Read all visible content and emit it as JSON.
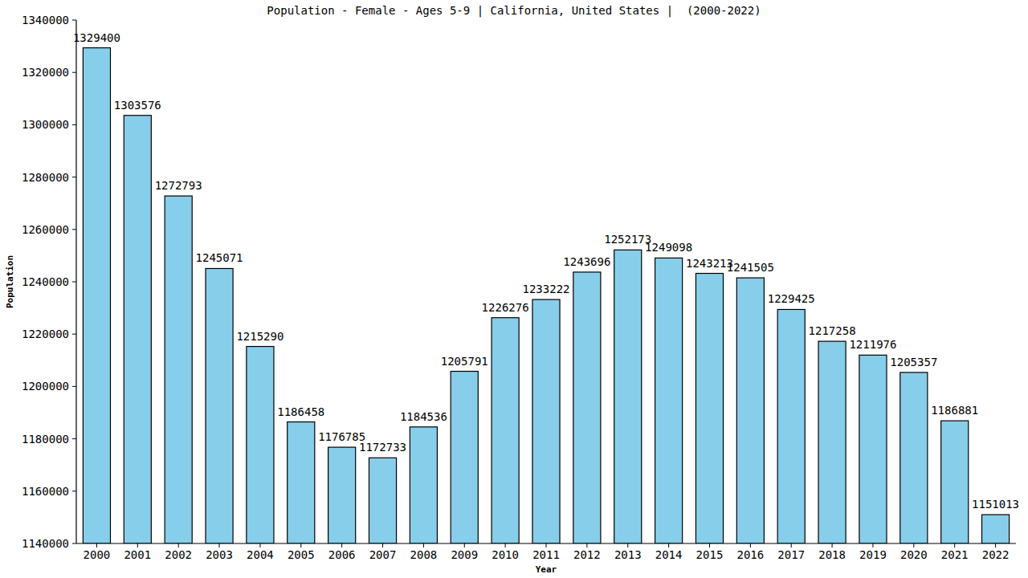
{
  "chart_data": {
    "type": "bar",
    "title": "Population - Female - Ages 5-9 | California, United States |  (2000-2022)",
    "x_label": "Year",
    "y_label": "Population",
    "categories": [
      "2000",
      "2001",
      "2002",
      "2003",
      "2004",
      "2005",
      "2006",
      "2007",
      "2008",
      "2009",
      "2010",
      "2011",
      "2012",
      "2013",
      "2014",
      "2015",
      "2016",
      "2017",
      "2018",
      "2019",
      "2020",
      "2021",
      "2022"
    ],
    "values": [
      1329400,
      1303576,
      1272793,
      1245071,
      1215290,
      1186458,
      1176785,
      1172733,
      1184536,
      1205791,
      1226276,
      1233222,
      1243696,
      1252173,
      1249098,
      1243213,
      1241505,
      1229425,
      1217258,
      1211976,
      1205357,
      1186881,
      1151013
    ],
    "color": "#87ceeb",
    "ylim": [
      1140000,
      1340000
    ],
    "yticks": [
      1140000,
      1160000,
      1180000,
      1200000,
      1220000,
      1240000,
      1260000,
      1280000,
      1300000,
      1320000,
      1340000
    ],
    "grid": false,
    "data_labels": true
  }
}
